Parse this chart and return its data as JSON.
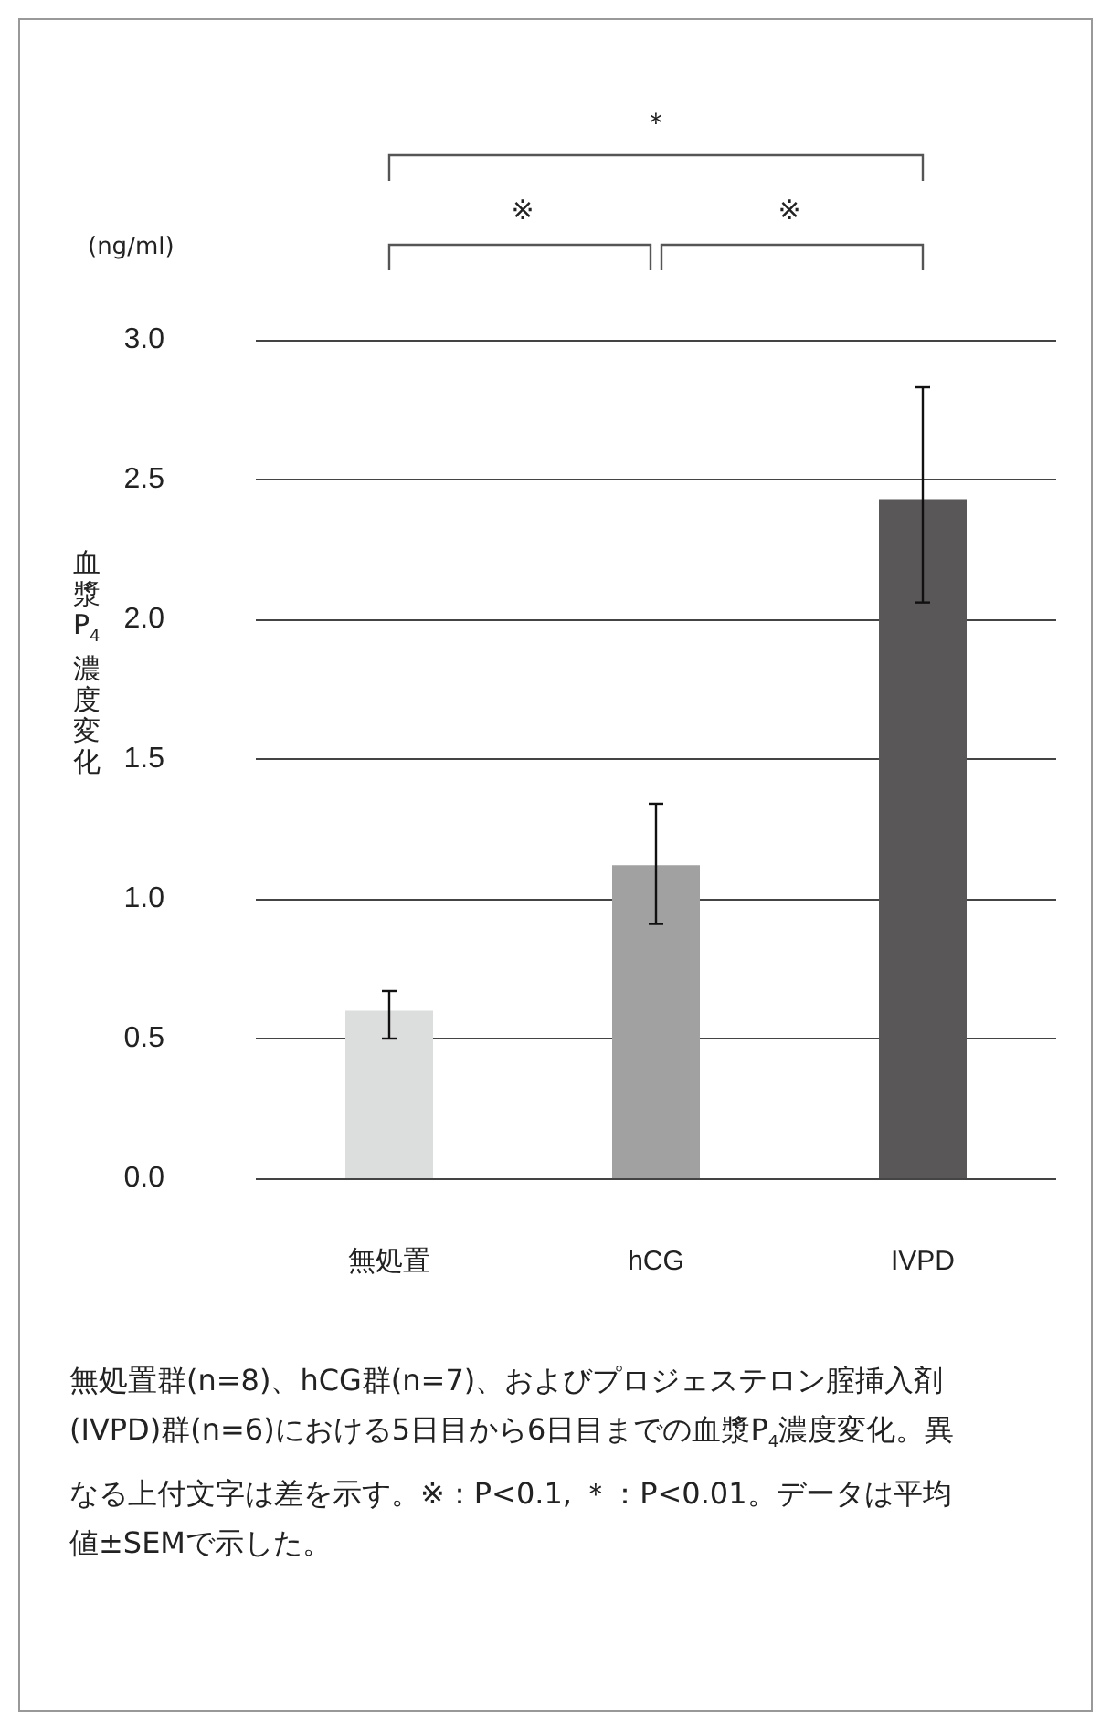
{
  "chart_data": {
    "type": "bar",
    "ylabel": "血漿P$_{4}$濃度変化",
    "categories": [
      "無処置",
      "hCG",
      "IVPD"
    ],
    "values": [
      0.6,
      1.12,
      2.43
    ],
    "colors": [
      "#dcdddd",
      "#a0a1a0",
      "#595757"
    ],
    "errors": [
      [
        0.5,
        0.67
      ],
      [
        0.91,
        1.34
      ],
      [
        2.06,
        2.83
      ]
    ],
    "ylim": [
      0,
      3
    ],
    "yticks": [
      {
        "value": 0,
        "label": "0.0"
      },
      0.5,
      {
        "value": 1,
        "label": "1.0"
      },
      1.5,
      {
        "value": 2,
        "label": "2.0"
      },
      2.5,
      {
        "value": 3,
        "label": "3.0"
      }
    ],
    "grid": "y",
    "annotations": [
      "(ng/ml)",
      "＊",
      "※",
      "※",
      "無処置群(n=8)、hCG群(n=7)、およびプロジェステロン腟挿入剤(IVPD)群(n=6)における5日目から6日目までの血漿P$_{4}$濃度変化。異なる上付文字は差を示す。※：P<0.1, ＊：P<0.01。データは平均値±SEMで示した。"
    ]
  }
}
